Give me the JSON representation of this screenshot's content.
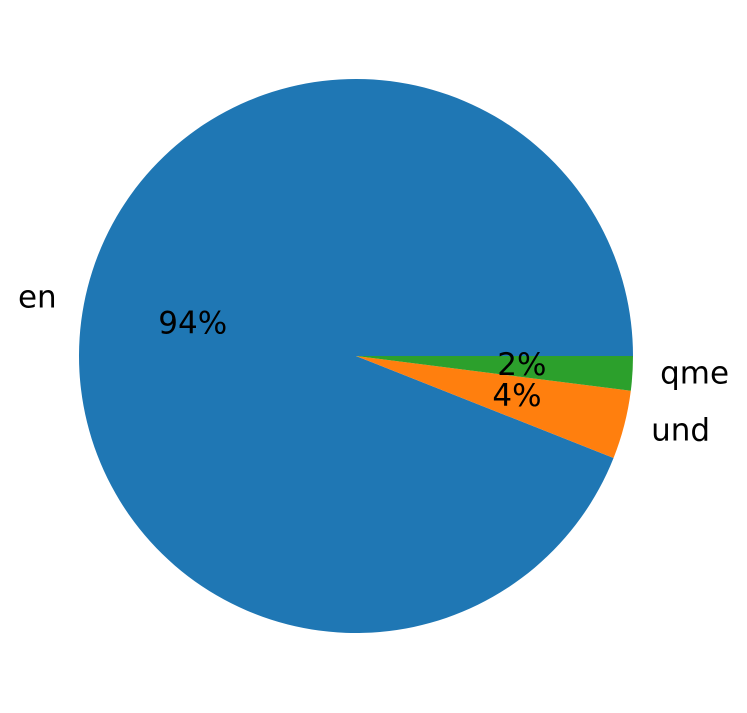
{
  "chart_data": {
    "type": "pie",
    "categories": [
      "en",
      "und",
      "qme"
    ],
    "values": [
      94,
      4,
      2
    ],
    "value_labels": [
      "94%",
      "4%",
      "2%"
    ],
    "colors": [
      "#1f77b4",
      "#ff7f0e",
      "#2ca02c"
    ]
  }
}
